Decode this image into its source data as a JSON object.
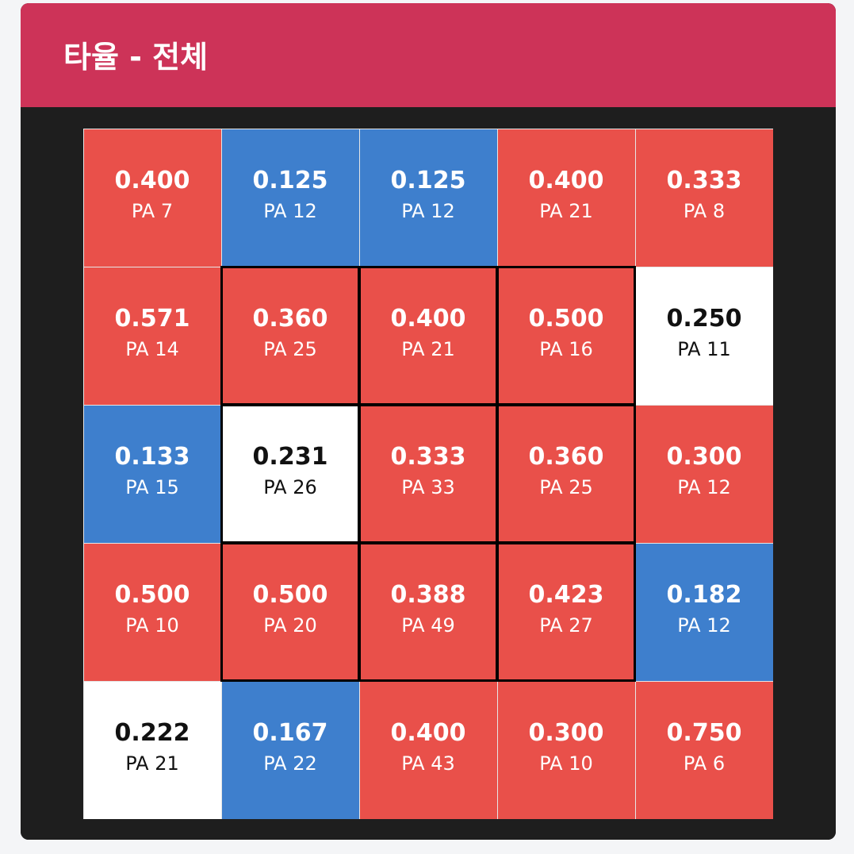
{
  "title": "타율 - 전체",
  "colors": {
    "header": "#cd3358",
    "card": "#1e1e1e",
    "hot": "#e9504a",
    "cold": "#3e7fcd",
    "neutral": "#ffffff",
    "zone_border": "#000000"
  },
  "chart_data": {
    "type": "heatmap",
    "title": "타율 - 전체",
    "rows": 5,
    "cols": 5,
    "strike_zone": {
      "rows": [
        1,
        2,
        3
      ],
      "cols": [
        1,
        2,
        3
      ]
    },
    "cells": [
      [
        {
          "avg": "0.400",
          "pa": "PA 7",
          "level": "hot"
        },
        {
          "avg": "0.125",
          "pa": "PA 12",
          "level": "cold"
        },
        {
          "avg": "0.125",
          "pa": "PA 12",
          "level": "cold"
        },
        {
          "avg": "0.400",
          "pa": "PA 21",
          "level": "hot"
        },
        {
          "avg": "0.333",
          "pa": "PA 8",
          "level": "hot"
        }
      ],
      [
        {
          "avg": "0.571",
          "pa": "PA 14",
          "level": "hot"
        },
        {
          "avg": "0.360",
          "pa": "PA 25",
          "level": "hot"
        },
        {
          "avg": "0.400",
          "pa": "PA 21",
          "level": "hot"
        },
        {
          "avg": "0.500",
          "pa": "PA 16",
          "level": "hot"
        },
        {
          "avg": "0.250",
          "pa": "PA 11",
          "level": "neutral"
        }
      ],
      [
        {
          "avg": "0.133",
          "pa": "PA 15",
          "level": "cold"
        },
        {
          "avg": "0.231",
          "pa": "PA 26",
          "level": "neutral"
        },
        {
          "avg": "0.333",
          "pa": "PA 33",
          "level": "hot"
        },
        {
          "avg": "0.360",
          "pa": "PA 25",
          "level": "hot"
        },
        {
          "avg": "0.300",
          "pa": "PA 12",
          "level": "hot"
        }
      ],
      [
        {
          "avg": "0.500",
          "pa": "PA 10",
          "level": "hot"
        },
        {
          "avg": "0.500",
          "pa": "PA 20",
          "level": "hot"
        },
        {
          "avg": "0.388",
          "pa": "PA 49",
          "level": "hot"
        },
        {
          "avg": "0.423",
          "pa": "PA 27",
          "level": "hot"
        },
        {
          "avg": "0.182",
          "pa": "PA 12",
          "level": "cold"
        }
      ],
      [
        {
          "avg": "0.222",
          "pa": "PA 21",
          "level": "neutral"
        },
        {
          "avg": "0.167",
          "pa": "PA 22",
          "level": "cold"
        },
        {
          "avg": "0.400",
          "pa": "PA 43",
          "level": "hot"
        },
        {
          "avg": "0.300",
          "pa": "PA 10",
          "level": "hot"
        },
        {
          "avg": "0.750",
          "pa": "PA 6",
          "level": "hot"
        }
      ]
    ]
  }
}
